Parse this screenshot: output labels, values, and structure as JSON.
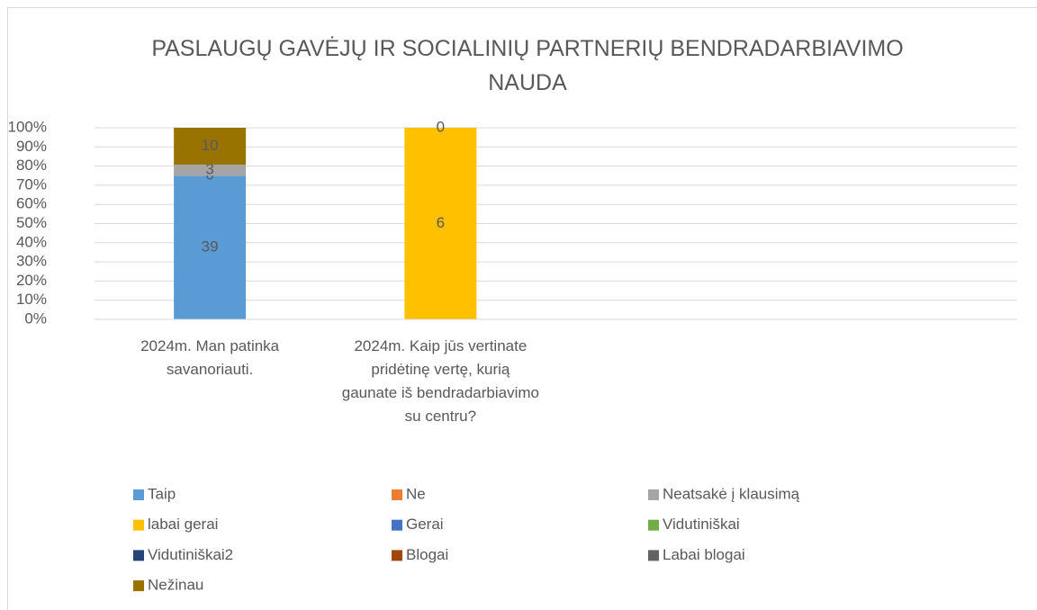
{
  "chart_data": {
    "type": "stacked-percent-bar",
    "title": "PASLAUGŲ GAVĖJŲ IR SOCIALINIŲ PARTNERIŲ BENDRADARBIAVIMO NAUDA",
    "categories": [
      "2024m. Man patinka savanoriauti.",
      "2024m. Kaip jūs vertinate pridėtinę vertę, kurią gaunate iš bendradarbiavimo su centru?",
      null,
      null
    ],
    "ylim": [
      0,
      100
    ],
    "yticks": [
      {
        "value": 0,
        "label": "0%"
      },
      {
        "value": 10,
        "label": "10%"
      },
      {
        "value": 20,
        "label": "20%"
      },
      {
        "value": 30,
        "label": "30%"
      },
      {
        "value": 40,
        "label": "40%"
      },
      {
        "value": 50,
        "label": "50%"
      },
      {
        "value": 60,
        "label": "60%"
      },
      {
        "value": 70,
        "label": "70%"
      },
      {
        "value": 80,
        "label": "80%"
      },
      {
        "value": 90,
        "label": "90%"
      },
      {
        "value": 100,
        "label": "100%"
      }
    ],
    "grid": true,
    "series": [
      {
        "name": "Taip",
        "color": "#5b9bd5",
        "values": [
          39,
          null,
          null,
          null
        ]
      },
      {
        "name": "Ne",
        "color": "#ed7d31",
        "values": [
          0,
          null,
          null,
          null
        ]
      },
      {
        "name": "Neatsakė į klausimą",
        "color": "#a5a5a5",
        "values": [
          3,
          null,
          null,
          null
        ]
      },
      {
        "name": "labai gerai",
        "color": "#ffc000",
        "values": [
          null,
          6,
          null,
          null
        ]
      },
      {
        "name": "Gerai",
        "color": "#4472c4",
        "values": [
          null,
          0,
          null,
          null
        ]
      },
      {
        "name": "Vidutiniškai",
        "color": "#70ad47",
        "values": [
          null,
          null,
          null,
          null
        ]
      },
      {
        "name": "Vidutiniškai2",
        "color": "#264478",
        "values": [
          null,
          null,
          null,
          null
        ]
      },
      {
        "name": "Blogai",
        "color": "#9e480e",
        "values": [
          null,
          null,
          null,
          null
        ]
      },
      {
        "name": "Labai blogai",
        "color": "#636363",
        "values": [
          null,
          null,
          null,
          null
        ]
      },
      {
        "name": "Nežinau",
        "color": "#997300",
        "values": [
          10,
          null,
          null,
          null
        ]
      }
    ]
  }
}
